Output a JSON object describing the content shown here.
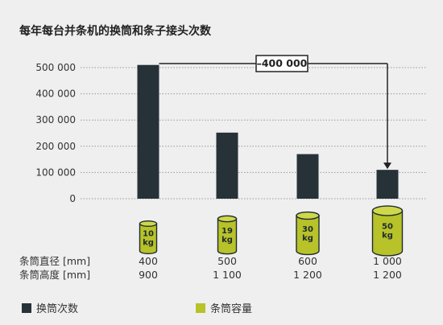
{
  "chart_data": {
    "type": "bar",
    "title": "每年每台并条机的换筒和条子接头次数",
    "categories": [
      "10 kg",
      "19 kg",
      "30 kg",
      "50 kg"
    ],
    "series": [
      {
        "name": "换筒次数",
        "values": [
          510000,
          252000,
          170000,
          110000
        ]
      }
    ],
    "ylim": [
      0,
      500000
    ],
    "yticks": [
      0,
      100000,
      200000,
      300000,
      400000,
      500000
    ],
    "ytick_labels": [
      "0",
      "100 000",
      "200 000",
      "300 000",
      "400 000",
      "500 000"
    ],
    "grid": true,
    "annotation": "–400 000",
    "can_labels": [
      {
        "top": "10",
        "bottom": "kg"
      },
      {
        "top": "19",
        "bottom": "kg"
      },
      {
        "top": "30",
        "bottom": "kg"
      },
      {
        "top": "50",
        "bottom": "kg"
      }
    ],
    "table": {
      "rows": [
        {
          "label": "条筒直径 [mm]",
          "values": [
            "400",
            "500",
            "600",
            "1 000"
          ]
        },
        {
          "label": "条筒高度 [mm]",
          "values": [
            "900",
            "1 100",
            "1 200",
            "1 200"
          ]
        }
      ]
    },
    "legend": [
      {
        "label": "换筒次数",
        "color": "#263238"
      },
      {
        "label": "条筒容量",
        "color": "#b8c229"
      }
    ],
    "colors": {
      "bar": "#263238",
      "can": "#b8c229",
      "grid": "#9a9a9a"
    }
  }
}
